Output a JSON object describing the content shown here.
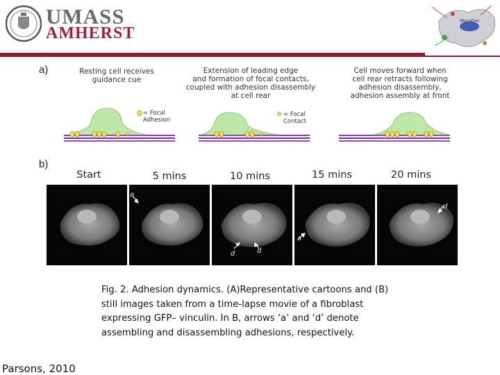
{
  "header": {
    "logo_line1": "UMASS",
    "logo_line2": "AMHERST",
    "brand_colors": {
      "maroon": "#8c1c2e",
      "gray": "#6b6b6b"
    },
    "seal_icon": "university-seal-icon",
    "corner_label": "Migration"
  },
  "figure": {
    "panel_a_label": "a)",
    "panel_b_label": "b)",
    "steps": [
      {
        "line1": "Resting cell receives",
        "line2": "guidance cue"
      },
      {
        "line1": "Extension of leading edge",
        "line2": "and formation of focal contacts,",
        "line3": "coupled with adhesion disassembly",
        "line4": "at cell rear"
      },
      {
        "line1": "Cell moves forward when",
        "line2": "cell rear retracts following",
        "line3": "adhesion disassembly,",
        "line4": "adhesion assembly at front"
      }
    ],
    "legend_adhesion": {
      "line1": "= Focal",
      "line2": "Adhesion"
    },
    "legend_contact": {
      "line1": "= Focal",
      "line2": "Contact"
    },
    "time_labels": [
      "Start",
      "5 mins",
      "10 mins",
      "15 mins",
      "20 mins"
    ],
    "arrow_labels": {
      "a": "a",
      "d": "d"
    }
  },
  "caption": {
    "line1": "Fig. 2. Adhesion dynamics. (A)Representative cartoons and (B)",
    "line2": "still images taken from a time-lapse movie of a fibroblast",
    "line3": "expressing GFP– vinculin. In B, arrows ‘a’ and ‘d’ denote",
    "line4": "assembling and disassembling adhesions, respectively."
  },
  "citation": "Parsons, 2010"
}
